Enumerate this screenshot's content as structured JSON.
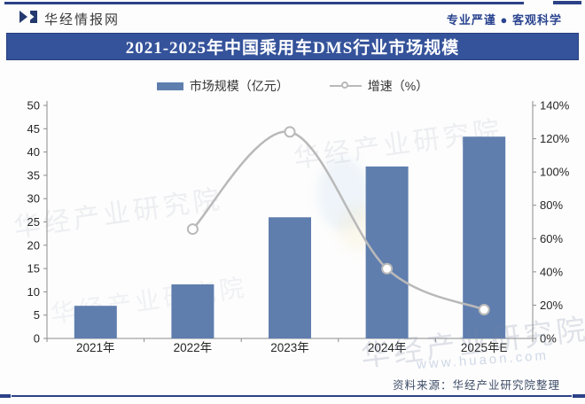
{
  "header": {
    "site_name": "华经情报网",
    "slogan": "专业严谨 ● 客观科学"
  },
  "title": "2021-2025年中国乘用车DMS行业市场规模",
  "legend": {
    "bar_label": "市场规模（亿元）",
    "line_label": "增速（%）"
  },
  "source": "资料来源：华经产业研究院整理",
  "watermarks": {
    "org": "华经产业研究院",
    "url": "www.huaon.com"
  },
  "colors": {
    "navy": "#2c4288",
    "title_bg": "#35539b",
    "bar_fill": "#5f7eae",
    "line_gray": "#b9b9b9",
    "axis_gray": "#8c8c8c",
    "tick_text": "#262626"
  },
  "chart_data": {
    "type": "bar",
    "subtype": "combo-bar-line",
    "categories": [
      "2021年",
      "2022年",
      "2023年",
      "2024年",
      "2025年E"
    ],
    "series": [
      {
        "name": "市场规模（亿元）",
        "type": "bar",
        "axis": "left",
        "values": [
          7.0,
          11.6,
          26.0,
          36.9,
          43.3
        ]
      },
      {
        "name": "增速（%）",
        "type": "line",
        "axis": "right",
        "values": [
          null,
          65.7,
          124.1,
          41.9,
          17.3
        ]
      }
    ],
    "left_axis": {
      "label": "市场规模（亿元）",
      "min": 0,
      "max": 50,
      "step": 5,
      "suffix": ""
    },
    "right_axis": {
      "label": "增速（%）",
      "min": 0,
      "max": 140,
      "step": 20,
      "suffix": "%"
    },
    "grid": false,
    "legend_position": "top-center"
  }
}
